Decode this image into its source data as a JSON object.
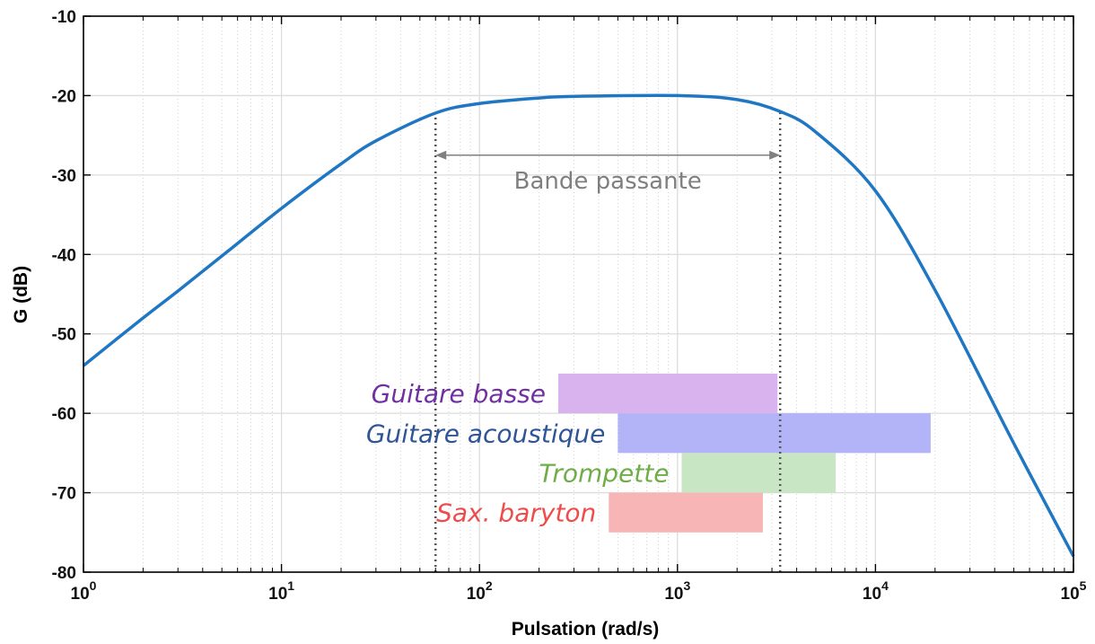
{
  "chart_data": {
    "type": "line",
    "xlabel": "Pulsation (rad/s)",
    "ylabel": "G (dB)",
    "xscale": "log",
    "xlim": [
      1,
      100000
    ],
    "ylim": [
      -80,
      -10
    ],
    "grid": true,
    "x_tick_labels": [
      {
        "base": "10",
        "exp": "0"
      },
      {
        "base": "10",
        "exp": "1"
      },
      {
        "base": "10",
        "exp": "2"
      },
      {
        "base": "10",
        "exp": "3"
      },
      {
        "base": "10",
        "exp": "4"
      },
      {
        "base": "10",
        "exp": "5"
      }
    ],
    "y_ticks": [
      -10,
      -20,
      -30,
      -40,
      -50,
      -60,
      -70,
      -80
    ],
    "series": [
      {
        "color": "#1f77c4",
        "x": [
          1,
          2,
          3,
          5,
          10,
          20,
          30,
          60,
          100,
          200,
          300,
          1000,
          2000,
          3300,
          5000,
          10000,
          20000,
          50000,
          100000
        ],
        "y": [
          -54,
          -48,
          -44.6,
          -40.2,
          -34.2,
          -28.6,
          -25.7,
          -22.2,
          -21,
          -20.3,
          -20.1,
          -20,
          -20.5,
          -22,
          -24.6,
          -32,
          -44.5,
          -63.8,
          -78
        ]
      }
    ],
    "cutoff_markers": [
      60,
      3300
    ],
    "band_annotation": {
      "text": "Bande passante",
      "x_range": [
        60,
        3300
      ],
      "y": -27.5,
      "color": "#7f7f7f"
    },
    "instrument_ranges": [
      {
        "name": "Guitare basse",
        "x_range": [
          250,
          3200
        ],
        "y_range": [
          -55,
          -60
        ],
        "fill": "#d9b3ee",
        "label_color": "#7030a0"
      },
      {
        "name": "Guitare acoustique",
        "x_range": [
          500,
          19000
        ],
        "y_range": [
          -60,
          -65
        ],
        "fill": "#b3b3f7",
        "label_color": "#2f5597"
      },
      {
        "name": "Trompette",
        "x_range": [
          1050,
          6300
        ],
        "y_range": [
          -65,
          -70
        ],
        "fill": "#c8e6c4",
        "label_color": "#70ad47"
      },
      {
        "name": "Sax. baryton",
        "x_range": [
          450,
          2700
        ],
        "y_range": [
          -70,
          -75
        ],
        "fill": "#f7b5b5",
        "label_color": "#f04b4b"
      }
    ]
  }
}
